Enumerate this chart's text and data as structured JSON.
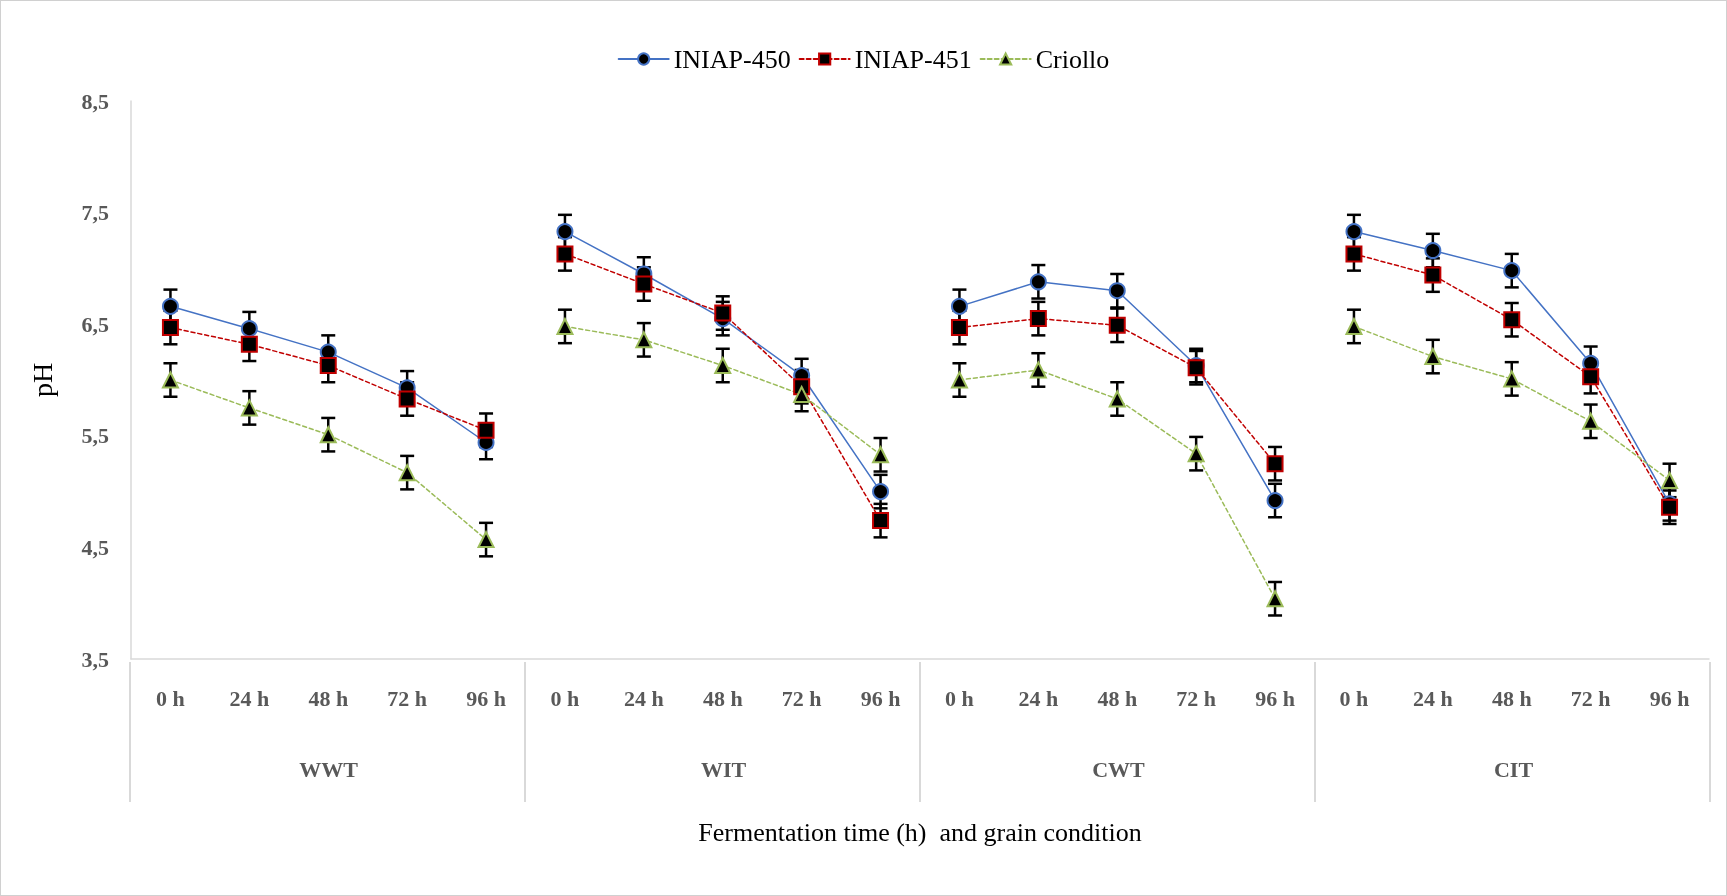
{
  "chart_data": {
    "type": "line",
    "xlabel": "Fermentation time (h)  and grain condition",
    "ylabel": "pH",
    "categories": [
      "0 h",
      "24 h",
      "48 h",
      "72 h",
      "96 h",
      "0 h",
      "24 h",
      "48 h",
      "72 h",
      "96 h",
      "0 h",
      "24 h",
      "48 h",
      "72 h",
      "96 h",
      "0 h",
      "24 h",
      "48 h",
      "72 h",
      "96 h"
    ],
    "annotations": [
      "WWT",
      "WIT",
      "CWT",
      "CIT"
    ],
    "series": [
      {
        "name": "INIAP-450",
        "color": "#4472c4",
        "marker": "circle",
        "line_style": "solid",
        "values": [
          6.66,
          6.46,
          6.25,
          5.93,
          5.44,
          7.33,
          6.95,
          6.55,
          6.04,
          5.0,
          6.66,
          6.88,
          6.8,
          6.13,
          4.92,
          7.33,
          7.16,
          6.98,
          6.15,
          4.89
        ],
        "errors": [
          0.15,
          0.15,
          0.15,
          0.15,
          0.15,
          0.15,
          0.15,
          0.15,
          0.15,
          0.15,
          0.15,
          0.15,
          0.15,
          0.15,
          0.15,
          0.15,
          0.15,
          0.15,
          0.15,
          0.15
        ]
      },
      {
        "name": "INIAP-451",
        "color": "#c00000",
        "marker": "square",
        "line_style": "dashed",
        "values": [
          6.47,
          6.32,
          6.13,
          5.83,
          5.55,
          7.13,
          6.86,
          6.6,
          5.94,
          4.74,
          6.47,
          6.55,
          6.49,
          6.11,
          5.25,
          7.13,
          6.94,
          6.54,
          6.03,
          4.86
        ],
        "errors": [
          0.15,
          0.15,
          0.15,
          0.15,
          0.15,
          0.15,
          0.15,
          0.15,
          0.15,
          0.15,
          0.15,
          0.15,
          0.15,
          0.15,
          0.15,
          0.15,
          0.15,
          0.15,
          0.15,
          0.15
        ]
      },
      {
        "name": "Criollo",
        "color": "#9bbb59",
        "marker": "triangle",
        "line_style": "dashed",
        "values": [
          6.0,
          5.75,
          5.51,
          5.17,
          4.57,
          6.48,
          6.36,
          6.13,
          5.87,
          5.33,
          6.0,
          6.09,
          5.83,
          5.34,
          4.04,
          6.48,
          6.21,
          6.01,
          5.63,
          5.1
        ],
        "errors": [
          0.15,
          0.15,
          0.15,
          0.15,
          0.15,
          0.15,
          0.15,
          0.15,
          0.15,
          0.15,
          0.15,
          0.15,
          0.15,
          0.15,
          0.15,
          0.15,
          0.15,
          0.15,
          0.15,
          0.15
        ]
      }
    ],
    "ylim": [
      3.5,
      8.5
    ],
    "yticks": [
      {
        "value": 3.5,
        "label": "3,5"
      },
      {
        "value": 4.5,
        "label": "4,5"
      },
      {
        "value": 5.5,
        "label": "5,5"
      },
      {
        "value": 6.5,
        "label": "6,5"
      },
      {
        "value": 7.5,
        "label": "7,5"
      },
      {
        "value": 8.5,
        "label": "8,5"
      }
    ],
    "grid": false,
    "legend": "top"
  }
}
